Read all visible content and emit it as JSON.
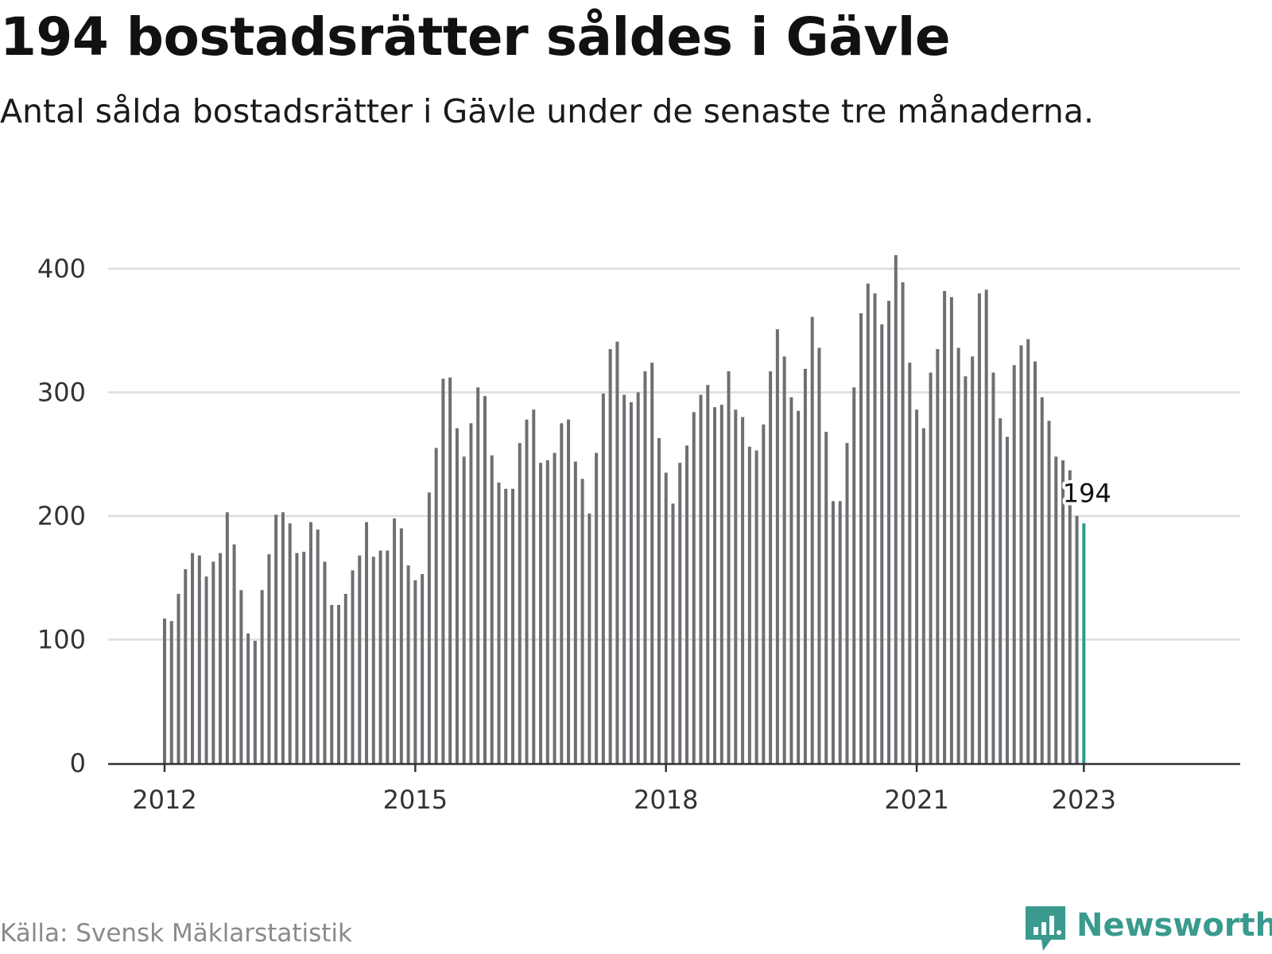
{
  "header": {
    "title": "194 bostadsrätter såldes i Gävle",
    "subtitle": "Antal sålda bostadsrätter i Gävle under de senaste tre månaderna."
  },
  "footer": {
    "source": "Källa: Svensk Mäklarstatistik",
    "brand": "Newsworthy"
  },
  "colors": {
    "bar": "#6e6e73",
    "highlight": "#2a9d8f",
    "grid": "#dddddd",
    "axis": "#333333",
    "brand": "#3a9a8e"
  },
  "chart_data": {
    "type": "bar",
    "title": "194 bostadsrätter såldes i Gävle",
    "subtitle": "Antal sålda bostadsrätter i Gävle under de senaste tre månaderna.",
    "xlabel": "",
    "ylabel": "",
    "x_start": "2012-01",
    "ylim": [
      0,
      420
    ],
    "yticks": [
      0,
      100,
      200,
      300,
      400
    ],
    "xticks": [
      {
        "label": "2012",
        "index": 0
      },
      {
        "label": "2015",
        "index": 36
      },
      {
        "label": "2018",
        "index": 72
      },
      {
        "label": "2021",
        "index": 108
      },
      {
        "label": "2023",
        "index": 132
      }
    ],
    "grid": true,
    "highlight_index": 132,
    "highlight_label": "194",
    "values": [
      117,
      115,
      137,
      157,
      170,
      168,
      151,
      163,
      170,
      203,
      177,
      140,
      105,
      99,
      140,
      169,
      201,
      203,
      194,
      170,
      171,
      195,
      189,
      163,
      128,
      128,
      137,
      156,
      168,
      195,
      167,
      172,
      172,
      198,
      190,
      160,
      148,
      153,
      219,
      255,
      311,
      312,
      271,
      248,
      275,
      304,
      297,
      249,
      227,
      222,
      222,
      259,
      278,
      286,
      243,
      245,
      251,
      275,
      278,
      244,
      230,
      202,
      251,
      299,
      335,
      341,
      298,
      292,
      300,
      317,
      324,
      263,
      235,
      210,
      243,
      257,
      284,
      298,
      306,
      288,
      290,
      317,
      286,
      280,
      256,
      253,
      274,
      317,
      351,
      329,
      296,
      285,
      319,
      361,
      336,
      268,
      212,
      212,
      259,
      304,
      364,
      388,
      380,
      355,
      374,
      411,
      389,
      324,
      286,
      271,
      316,
      335,
      382,
      377,
      336,
      313,
      329,
      380,
      383,
      316,
      279,
      264,
      322,
      338,
      343,
      325,
      296,
      277,
      248,
      245,
      237,
      200,
      194
    ]
  }
}
